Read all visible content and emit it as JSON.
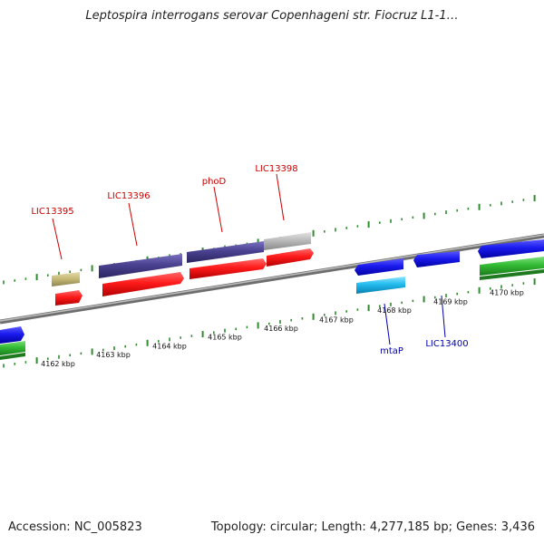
{
  "title": "Leptospira interrogans serovar Copenhageni str. Fiocruz L1-1…",
  "footer": {
    "accession": "Accession: NC_005823",
    "summary": "Topology: circular; Length: 4,277,185 bp; Genes: 3,436"
  },
  "scale_labels": [
    "4162 kbp",
    "4163 kbp",
    "4164 kbp",
    "4165 kbp",
    "4166 kbp",
    "4167 kbp",
    "4168 kbp",
    "4169 kbp",
    "4170 kbp"
  ],
  "gene_labels": [
    {
      "text": "LIC13395",
      "color": "#cc0000"
    },
    {
      "text": "LIC13396",
      "color": "#cc0000"
    },
    {
      "text": "phoD",
      "color": "#cc0000"
    },
    {
      "text": "LIC13398",
      "color": "#cc0000"
    },
    {
      "text": "mtaP",
      "color": "#0000aa"
    },
    {
      "text": "LIC13400",
      "color": "#0000aa"
    }
  ],
  "colors": {
    "forward_cds": "#ff1a1a",
    "reverse_cds": "#1a1aee",
    "forward_feature": "#4a4290",
    "reverse_feature": "#22bbee",
    "rna_or_other": "#c8bb78",
    "pseudo": "#bbbbbb",
    "green_feature": "#33bb33",
    "backbone": "#888888",
    "tick": "#2e8b2e"
  }
}
